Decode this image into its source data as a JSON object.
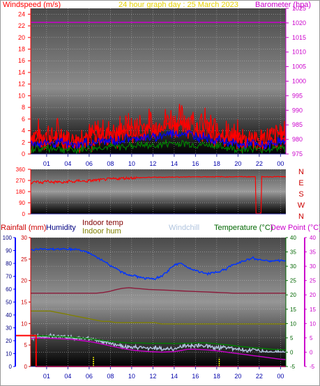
{
  "header": {
    "left_label": "Windspeed (m/s)",
    "title": "24 hour graph day : 25 March 2023",
    "right_label": "Barometer (hpa)"
  },
  "colors": {
    "wind": "#ff0000",
    "gust": "#0000ff",
    "avg_wind": "#008000",
    "baro": "#cc00cc",
    "dir": "#ff0000",
    "humidity": "#0033ff",
    "indoor_temp": "#8b1a3a",
    "indoor_hum": "#808000",
    "windchill": "#b0c4de",
    "temperature": "#008000",
    "dewpoint": "#cc00cc",
    "rain": "#ff0000",
    "rain_bar": "#ffff00",
    "label_indoor_temp": "#800000",
    "label_indoor_hum": "#808000",
    "label_temp": "#006600"
  },
  "bottom_labels": {
    "rainfall": "Rainfall (mm)",
    "humidity": "Humidity",
    "indoor_temp": "Indoor temp",
    "indoor_hum": "Indoor hum",
    "windchill": "Windchill",
    "temperature": "Temperature (°C)",
    "dewpoint": "Dew Point (°C)"
  },
  "chart_data": [
    {
      "type": "line",
      "x_ticks": [
        "01",
        "04",
        "06",
        "08",
        "10",
        "12",
        "14",
        "16",
        "18",
        "20",
        "22",
        "00"
      ],
      "left_ticks": [
        "0",
        "2",
        "4",
        "6",
        "8",
        "10",
        "12",
        "14",
        "16",
        "18",
        "20",
        "22",
        "24"
      ],
      "right_ticks": [
        "975",
        "980",
        "985",
        "990",
        "995",
        "1000",
        "1005",
        "1010",
        "1015",
        "1020",
        "1025"
      ],
      "ylim": [
        0,
        25
      ],
      "y2lim": [
        975,
        1025
      ],
      "series": [
        {
          "name": "Barometer (hpa)",
          "axis": "right",
          "values": [
            1020.2,
            1020.2
          ]
        },
        {
          "name": "Windspeed (m/s)",
          "values": [
            3.2,
            3.5,
            2.8,
            3.8,
            2.9,
            3.6,
            3.1,
            2.6,
            2.4,
            2.9,
            3.3,
            3.0,
            3.5,
            4.0,
            3.6,
            4.2,
            3.8,
            4.3,
            4.8,
            4.1,
            5.2,
            4.7,
            5.0,
            4.4,
            5.3,
            5.8,
            6.1,
            5.6,
            6.4,
            6.0,
            5.7,
            4.9,
            5.1,
            4.6,
            4.2,
            3.9,
            3.5,
            3.2,
            2.8,
            2.5,
            2.9,
            3.1,
            2.3,
            2.6,
            2.8,
            3.3,
            3.6,
            3.0
          ]
        },
        {
          "values": [
            1.8,
            2.0,
            1.6,
            2.1,
            1.7,
            2.0,
            1.8,
            1.5,
            1.4,
            1.6,
            1.9,
            1.7,
            2.0,
            2.3,
            2.1,
            2.4,
            2.2,
            2.5,
            2.8,
            2.4,
            3.0,
            2.7,
            2.9,
            2.6,
            3.1,
            3.4,
            3.6,
            3.3,
            3.7,
            3.5,
            3.3,
            2.9,
            3.0,
            2.7,
            2.5,
            2.3,
            2.0,
            1.9,
            1.6,
            1.5,
            1.7,
            1.8,
            1.3,
            1.5,
            1.6,
            1.9,
            2.1,
            1.8
          ]
        },
        {
          "values": [
            0.9,
            1.0,
            0.8,
            1.1,
            0.9,
            1.0,
            0.9,
            0.7,
            0.7,
            0.8,
            1.0,
            0.9,
            1.0,
            1.2,
            1.1,
            1.3,
            1.2,
            1.3,
            1.5,
            1.3,
            1.6,
            1.4,
            1.5,
            1.4,
            1.6,
            1.8,
            1.9,
            1.7,
            1.9,
            1.8,
            1.7,
            1.5,
            1.6,
            1.4,
            1.3,
            1.2,
            1.0,
            1.0,
            0.8,
            0.8,
            0.9,
            0.9,
            0.7,
            0.8,
            0.8,
            1.0,
            1.1,
            0.9
          ]
        }
      ]
    },
    {
      "type": "line",
      "left_ticks": [
        "0",
        "90",
        "180",
        "270",
        "360"
      ],
      "right_labels": [
        "N",
        "W",
        "S",
        "E",
        "N"
      ],
      "ylim": [
        0,
        360
      ],
      "series": [
        {
          "name": "Wind direction",
          "values": [
            245,
            262,
            250,
            268,
            255,
            260,
            250,
            265,
            258,
            270,
            262,
            268,
            272,
            275,
            280,
            282,
            285,
            288,
            290,
            292,
            292,
            294,
            295,
            296,
            296,
            297,
            298,
            298,
            298,
            299,
            300,
            299,
            300,
            300,
            300,
            300,
            299,
            300,
            301,
            300,
            300,
            300,
            5,
            300,
            300,
            301,
            300,
            300
          ]
        }
      ]
    },
    {
      "type": "line",
      "x_ticks": [
        "01",
        "04",
        "06",
        "08",
        "10",
        "12",
        "14",
        "16",
        "18",
        "20",
        "22",
        "00"
      ],
      "rain_ticks": [
        "0",
        "5",
        "10",
        "15",
        "20",
        "25",
        "30"
      ],
      "hum_ticks": [
        "0",
        "10",
        "20",
        "30",
        "40",
        "50",
        "60",
        "70",
        "80",
        "90",
        "100"
      ],
      "temp_ticks": [
        "-5",
        "0",
        "5",
        "10",
        "15",
        "20",
        "25",
        "30",
        "35",
        "40"
      ],
      "dew_ticks": [
        "-5",
        "0",
        "5",
        "10",
        "15",
        "20",
        "25",
        "30",
        "35",
        "40"
      ],
      "rainlim": [
        0,
        30
      ],
      "humlim": [
        0,
        100
      ],
      "templim": [
        -5,
        40
      ],
      "series": [
        {
          "name": "Humidity",
          "axis": "hum",
          "values": [
            90,
            91,
            91,
            91,
            91,
            91,
            91,
            91,
            90,
            88,
            85,
            82,
            79,
            76,
            73,
            71,
            70,
            69,
            68,
            68,
            70,
            74,
            79,
            80,
            77,
            75,
            73,
            72,
            73,
            74,
            76,
            79,
            81,
            83,
            84,
            83,
            82,
            82,
            82,
            82
          ]
        },
        {
          "name": "Indoor temp",
          "axis": "temp",
          "values": [
            20.6,
            20.6,
            20.6,
            20.6,
            20.6,
            20.6,
            20.6,
            20.6,
            20.6,
            20.6,
            20.6,
            20.8,
            21.2,
            21.8,
            22.3,
            22.5,
            22.3,
            22.1,
            21.9,
            21.8,
            21.7,
            21.6,
            21.5,
            21.4,
            21.3,
            21.2,
            21.1,
            21.0,
            20.9,
            20.8,
            20.7,
            20.6,
            20.6,
            20.6,
            20.6,
            20.6,
            20.6,
            20.6,
            20.6,
            20.6
          ]
        },
        {
          "name": "Indoor hum",
          "axis": "hum",
          "values": [
            43,
            43,
            43,
            43,
            42,
            41,
            40,
            39,
            38,
            37,
            36,
            35,
            35,
            34,
            34,
            34,
            34,
            34,
            34,
            34,
            33,
            33,
            33,
            33,
            33,
            33,
            33,
            33,
            33,
            33,
            33,
            33,
            33,
            33,
            33,
            33,
            33,
            33,
            33,
            33
          ]
        },
        {
          "name": "Windchill",
          "axis": "temp",
          "values": [
            5.2,
            5.5,
            5.3,
            5.6,
            5.4,
            5.5,
            5.2,
            5.0,
            4.8,
            4.6,
            4.2,
            3.6,
            3.1,
            2.6,
            2.2,
            1.8,
            1.5,
            1.8,
            1.2,
            1.6,
            1.0,
            1.4,
            1.2,
            1.8,
            2.3,
            2.0,
            2.5,
            2.2,
            1.7,
            1.5,
            1.8,
            1.3,
            1.0,
            0.6,
            0.9,
            0.4,
            0.2,
            -0.2,
            0.3,
            0.0
          ]
        },
        {
          "name": "Temperature (°C)",
          "axis": "temp",
          "values": [
            5.6,
            5.7,
            5.7,
            5.6,
            5.5,
            5.4,
            5.3,
            5.1,
            4.9,
            4.7,
            4.4,
            4.1,
            3.8,
            3.6,
            3.4,
            3.2,
            3.2,
            3.2,
            3.1,
            3.1,
            3.1,
            3.1,
            3.0,
            3.1,
            3.1,
            3.2,
            3.3,
            3.2,
            3.0,
            2.8,
            2.6,
            2.3,
            2.0,
            1.8,
            1.6,
            1.4,
            1.2,
            1.0,
            0.9,
            0.8
          ]
        },
        {
          "name": "Dew Point (°C)",
          "axis": "temp",
          "values": [
            4.8,
            4.9,
            4.9,
            4.8,
            4.7,
            4.6,
            4.5,
            4.3,
            4.0,
            3.7,
            3.3,
            2.8,
            2.3,
            1.8,
            1.3,
            0.9,
            0.6,
            0.4,
            0.2,
            0.1,
            0.0,
            0.1,
            0.2,
            0.6,
            1.0,
            1.0,
            0.9,
            0.8,
            0.6,
            0.3,
            0.0,
            -0.3,
            -0.6,
            -0.9,
            -1.2,
            -1.5,
            -1.8,
            -2.1,
            -2.4,
            -2.6
          ]
        },
        {
          "name": "Rainfall (mm)",
          "axis": "rain",
          "type": "step",
          "values": [
            7.2,
            7.2,
            7.2,
            0,
            0,
            0,
            0,
            0,
            0,
            0,
            0,
            0,
            0,
            0,
            0,
            0,
            0,
            0,
            0,
            0,
            0,
            0,
            0,
            0,
            0,
            0,
            0,
            0,
            0,
            0,
            0,
            0,
            0,
            0,
            0,
            0,
            0,
            0,
            0,
            0
          ]
        },
        {
          "axis": "rain",
          "type": "bars",
          "x": [
            0.246,
            0.739
          ],
          "values": [
            2.2,
            2.0
          ]
        }
      ]
    }
  ]
}
